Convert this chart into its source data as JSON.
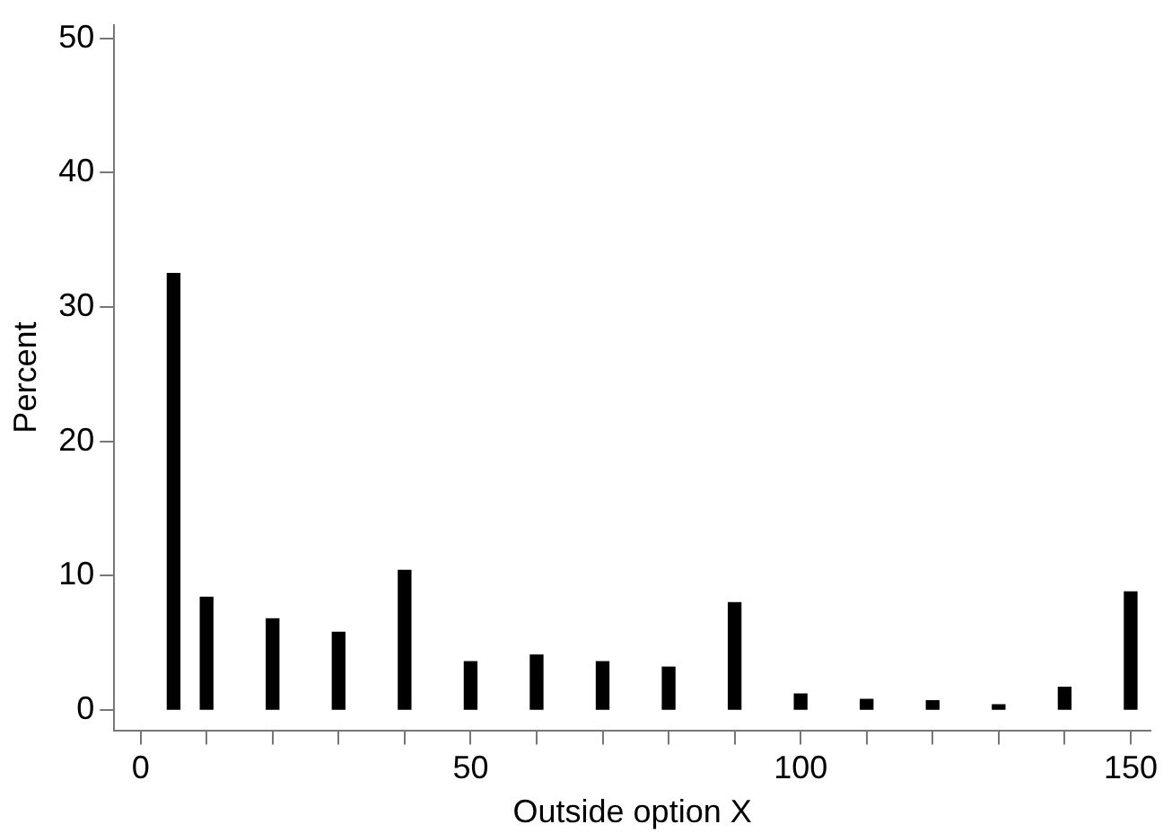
{
  "chart_data": {
    "type": "bar",
    "xlabel": "Outside option X",
    "ylabel": "Percent",
    "x": [
      5,
      10,
      20,
      30,
      40,
      50,
      60,
      70,
      80,
      90,
      100,
      110,
      120,
      130,
      140,
      150
    ],
    "values": [
      32.5,
      8.4,
      6.8,
      5.8,
      10.4,
      3.6,
      4.1,
      3.6,
      3.2,
      8.0,
      1.2,
      0.8,
      0.7,
      0.4,
      1.7,
      8.8
    ],
    "color": "#000000",
    "xlim": [
      -4,
      153
    ],
    "xticks": [
      0,
      {
        "value": 10,
        "label": null
      },
      {
        "value": 20,
        "label": null
      },
      {
        "value": 30,
        "label": null
      },
      {
        "value": 40,
        "label": null
      },
      50,
      {
        "value": 60,
        "label": null
      },
      {
        "value": 70,
        "label": null
      },
      {
        "value": 80,
        "label": null
      },
      {
        "value": 90,
        "label": null
      },
      100,
      {
        "value": 110,
        "label": null
      },
      {
        "value": 120,
        "label": null
      },
      {
        "value": 130,
        "label": null
      },
      {
        "value": 140,
        "label": null
      },
      150
    ],
    "ylim": [
      -1.5,
      51
    ],
    "yticks": [
      0,
      10,
      20,
      30,
      40,
      50
    ],
    "grid": false,
    "legend": false
  }
}
